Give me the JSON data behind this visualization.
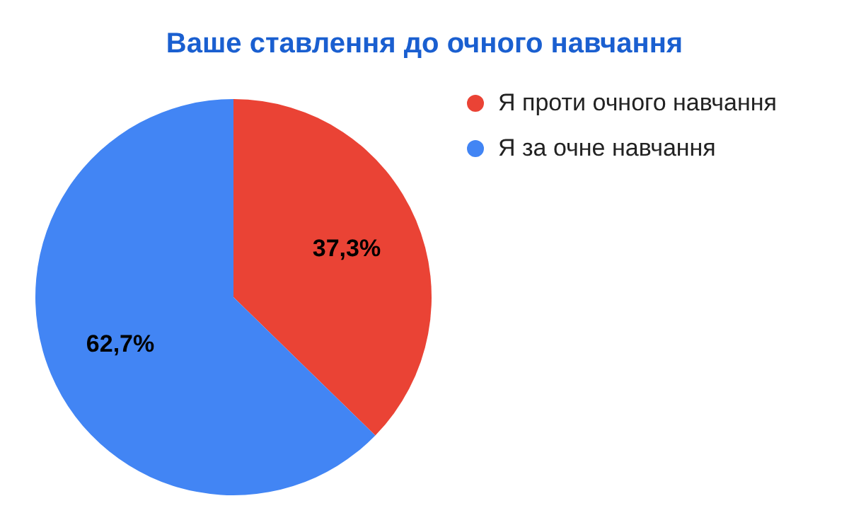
{
  "chart_data": {
    "type": "pie",
    "title": "Ваше ставлення до очного навчання",
    "categories": [
      "Я проти очного навчання",
      "Я за очне навчання"
    ],
    "values": [
      37.3,
      62.7
    ],
    "colors": [
      "#ea4335",
      "#4285f4"
    ],
    "value_labels": [
      "37,3%",
      "62,7%"
    ],
    "legend": "top right"
  }
}
